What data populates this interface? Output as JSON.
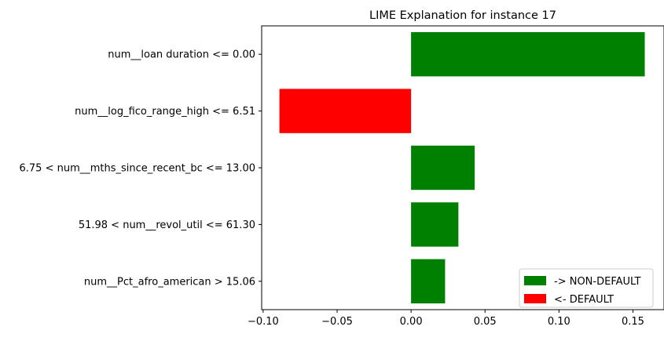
{
  "chart_data": {
    "type": "bar",
    "orientation": "horizontal",
    "title": "LIME Explanation for instance 17",
    "xlabel": "",
    "ylabel": "",
    "categories": [
      "num__loan duration <= 0.00",
      "num__log_fico_range_high <= 6.51",
      "6.75 < num__mths_since_recent_bc <= 13.00",
      "51.98 < num__revol_util <= 61.30",
      "num__Pct_afro_american > 15.06"
    ],
    "values": [
      0.158,
      -0.089,
      0.043,
      0.032,
      0.023
    ],
    "xlim": [
      -0.101,
      0.171
    ],
    "xticks": [
      -0.1,
      -0.05,
      0.0,
      0.05,
      0.1,
      0.15
    ],
    "xtick_labels": [
      "−0.10",
      "−0.05",
      "0.00",
      "0.05",
      "0.10",
      "0.15"
    ],
    "grid": false,
    "legend": {
      "placement": "lower-right",
      "entries": [
        {
          "label": "-> NON-DEFAULT",
          "color": "#008000"
        },
        {
          "label": "<- DEFAULT",
          "color": "#ff0000"
        }
      ]
    },
    "colors": {
      "positive": "#008000",
      "negative": "#ff0000"
    }
  }
}
